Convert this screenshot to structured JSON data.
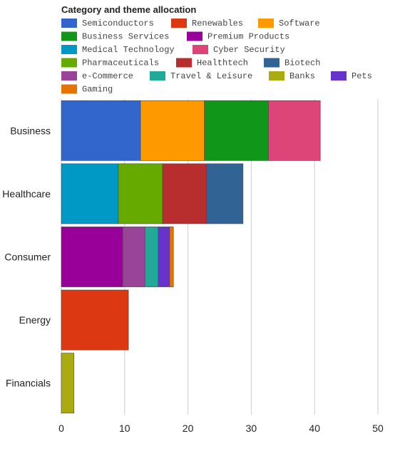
{
  "chart_data": {
    "type": "bar",
    "orientation": "horizontal",
    "stacked": true,
    "title": "Category and theme allocation",
    "categories": [
      "Business",
      "Healthcare",
      "Consumer",
      "Energy",
      "Financials"
    ],
    "xlim": [
      0,
      50
    ],
    "x_ticks": [
      "0",
      "10",
      "20",
      "30",
      "40",
      "50"
    ],
    "grid": true,
    "legend_position": "top",
    "series": [
      {
        "name": "Semiconductors",
        "color": "#3366cc",
        "values": [
          12.5,
          0,
          0,
          0,
          0
        ]
      },
      {
        "name": "Renewables",
        "color": "#dc3912",
        "values": [
          0,
          0,
          0,
          10.6,
          0
        ]
      },
      {
        "name": "Software",
        "color": "#ff9900",
        "values": [
          10.1,
          0,
          0,
          0,
          0
        ]
      },
      {
        "name": "Business Services",
        "color": "#109618",
        "values": [
          10.1,
          0,
          0,
          0,
          0
        ]
      },
      {
        "name": "Premium Products",
        "color": "#990099",
        "values": [
          0,
          0,
          9.7,
          0,
          0
        ]
      },
      {
        "name": "Medical Technology",
        "color": "#0099c6",
        "values": [
          0,
          9.0,
          0,
          0,
          0
        ]
      },
      {
        "name": "Cyber Security",
        "color": "#dd4477",
        "values": [
          8.2,
          0,
          0,
          0,
          0
        ]
      },
      {
        "name": "Pharmaceuticals",
        "color": "#66aa00",
        "values": [
          0,
          7.0,
          0,
          0,
          0
        ]
      },
      {
        "name": "Healthtech",
        "color": "#b82e2e",
        "values": [
          0,
          6.9,
          0,
          0,
          0
        ]
      },
      {
        "name": "Biotech",
        "color": "#316395",
        "values": [
          0,
          5.8,
          0,
          0,
          0
        ]
      },
      {
        "name": "e-Commerce",
        "color": "#994499",
        "values": [
          0,
          0,
          3.5,
          0,
          0
        ]
      },
      {
        "name": "Travel & Leisure",
        "color": "#22aa99",
        "values": [
          0,
          0,
          2.1,
          0,
          0
        ]
      },
      {
        "name": "Banks",
        "color": "#aaaa11",
        "values": [
          0,
          0,
          0,
          0,
          2.0
        ]
      },
      {
        "name": "Pets",
        "color": "#6633cc",
        "values": [
          0,
          0,
          1.8,
          0,
          0
        ]
      },
      {
        "name": "Gaming",
        "color": "#e67300",
        "values": [
          0,
          0,
          0.6,
          0,
          0
        ]
      }
    ]
  }
}
